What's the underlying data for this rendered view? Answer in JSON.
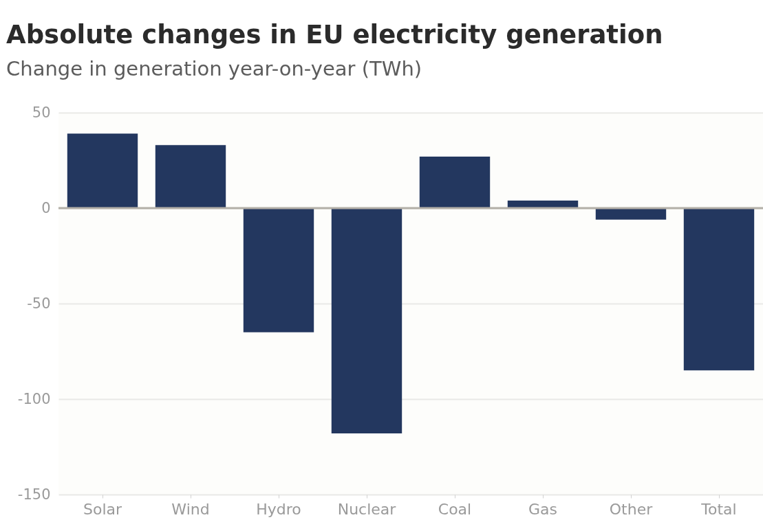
{
  "chart_data": {
    "type": "bar",
    "title": "Absolute changes in EU electricity generation",
    "subtitle": "Change in generation year-on-year (TWh)",
    "categories": [
      "Solar",
      "Wind",
      "Hydro",
      "Nuclear",
      "Coal",
      "Gas",
      "Other",
      "Total"
    ],
    "values": [
      39,
      33,
      -65,
      -118,
      27,
      4,
      -6,
      -85
    ],
    "color": "#23375f",
    "ylim": [
      -150,
      50
    ],
    "yticks": [
      -150,
      -100,
      -50,
      0,
      50
    ],
    "grid": "y",
    "ref_lines": [
      {
        "axis": "y",
        "value": 0,
        "color": "#b3afa7"
      }
    ]
  }
}
